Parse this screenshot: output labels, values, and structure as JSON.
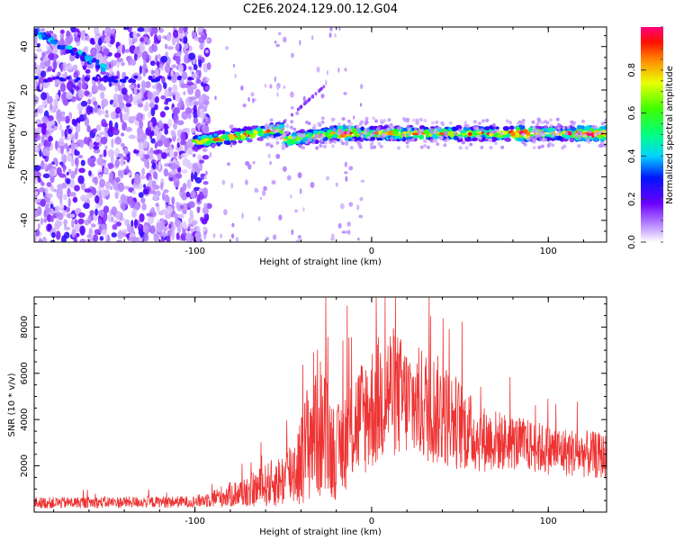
{
  "title": "C2E6.2024.129.00.12.G04",
  "chart_data": [
    {
      "type": "heatmap",
      "xlabel": "Height of straight line (km)",
      "ylabel": "Frequency (Hz)",
      "xlim": [
        -191,
        133
      ],
      "ylim": [
        -50,
        49
      ],
      "xticks": [
        -100,
        0,
        100
      ],
      "yticks": [
        -40,
        -20,
        0,
        20,
        40
      ],
      "colorbar": {
        "label": "Normalized spectral amplitude",
        "range": [
          0,
          1
        ],
        "ticks": [
          0.0,
          0.2,
          0.4,
          0.6,
          0.8
        ]
      },
      "features": [
        {
          "x_from": -191,
          "x_to": -92,
          "y_from": -50,
          "y_to": 49,
          "amplitude": 0.15
        },
        {
          "x_from": -100,
          "x_to": 133,
          "y_center": 0,
          "y_spread": 3,
          "amplitude": 0.55
        },
        {
          "x_from": -191,
          "x_to": -150,
          "y_from": 47,
          "y_to": 30,
          "amplitude": 0.35
        }
      ]
    },
    {
      "type": "line",
      "xlabel": "Height of straight line (km)",
      "ylabel": "SNR (10 * v/v)",
      "xlim": [
        -191,
        133
      ],
      "ylim": [
        0,
        9300
      ],
      "xticks": [
        -100,
        0,
        100
      ],
      "yticks": [
        2000,
        4000,
        6000,
        8000
      ],
      "series": [
        {
          "color": "#ee3333",
          "envelope": [
            {
              "x": -191,
              "mean": 400,
              "spread": 250
            },
            {
              "x": -100,
              "mean": 450,
              "spread": 250
            },
            {
              "x": -90,
              "mean": 600,
              "spread": 400
            },
            {
              "x": -70,
              "mean": 900,
              "spread": 700
            },
            {
              "x": -50,
              "mean": 1400,
              "spread": 1200
            },
            {
              "x": -40,
              "mean": 2200,
              "spread": 2000
            },
            {
              "x": -32,
              "mean": 4000,
              "spread": 3500
            },
            {
              "x": -20,
              "mean": 2500,
              "spread": 2000
            },
            {
              "x": -10,
              "mean": 3800,
              "spread": 2500
            },
            {
              "x": 0,
              "mean": 4500,
              "spread": 2800
            },
            {
              "x": 10,
              "mean": 5300,
              "spread": 3000
            },
            {
              "x": 20,
              "mean": 4800,
              "spread": 2500
            },
            {
              "x": 35,
              "mean": 4500,
              "spread": 2500
            },
            {
              "x": 50,
              "mean": 3800,
              "spread": 2000
            },
            {
              "x": 60,
              "mean": 3200,
              "spread": 1500
            },
            {
              "x": 80,
              "mean": 3000,
              "spread": 1200
            },
            {
              "x": 100,
              "mean": 2700,
              "spread": 1100
            },
            {
              "x": 133,
              "mean": 2400,
              "spread": 1000
            }
          ]
        }
      ]
    }
  ]
}
